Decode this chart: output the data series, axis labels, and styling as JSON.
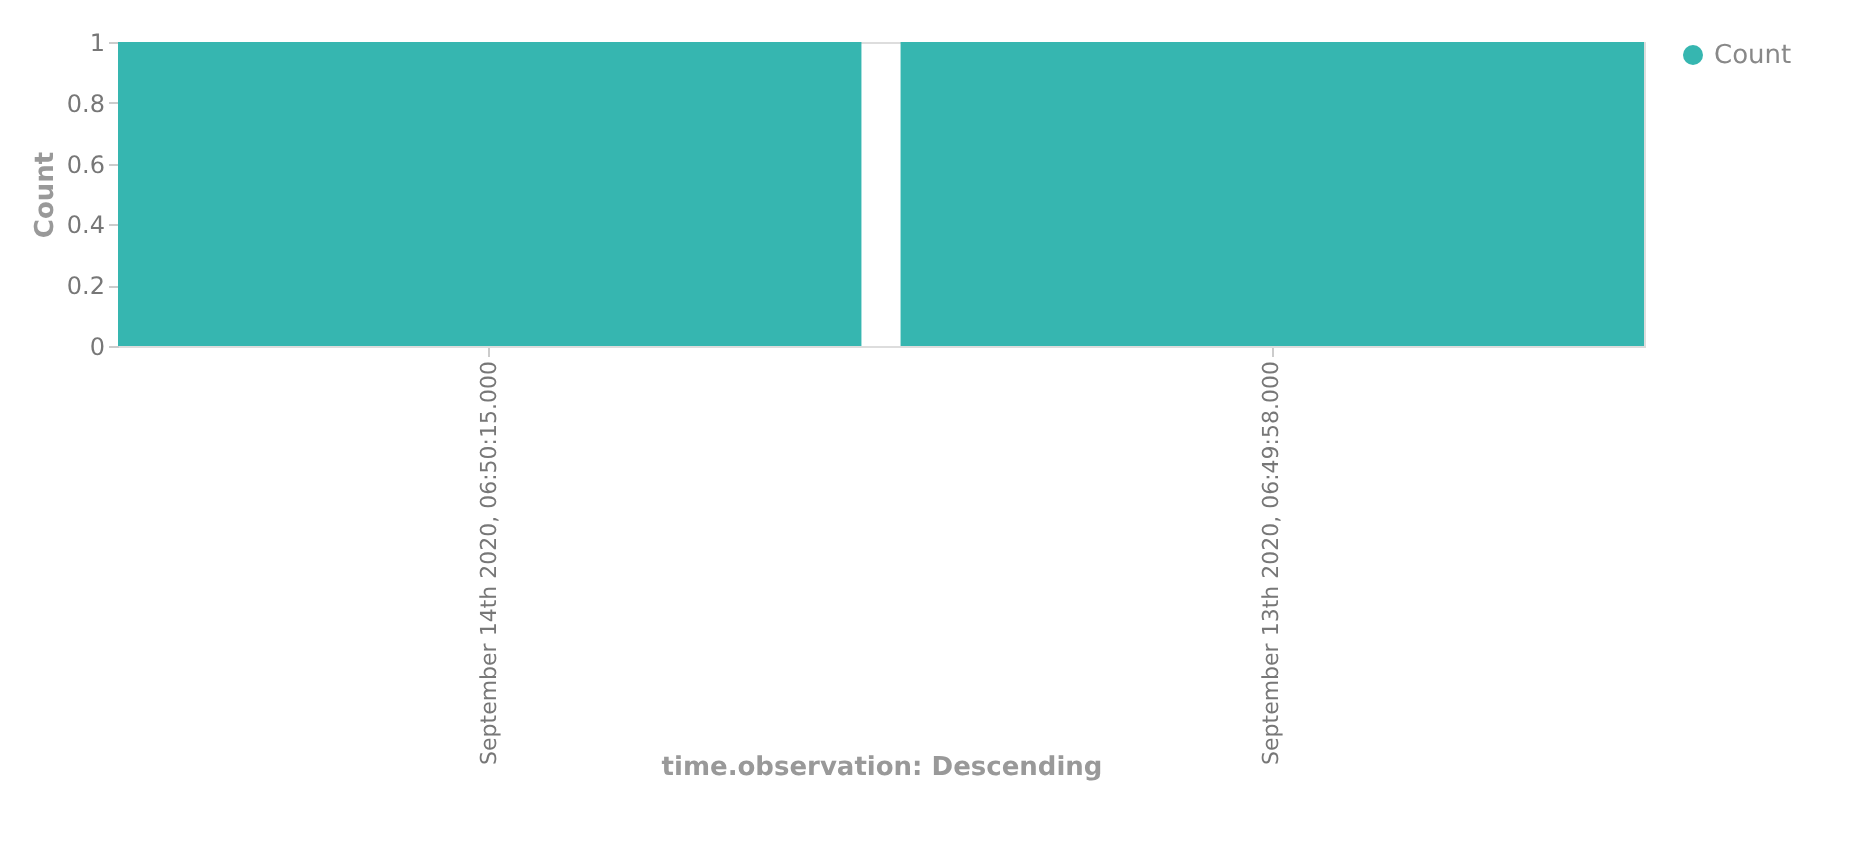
{
  "chart_data": {
    "type": "bar",
    "xlabel": "time.observation: Descending",
    "ylabel": "Count",
    "categories": [
      "September 14th 2020, 06:50:15.000",
      "September 13th 2020, 06:49:58.000"
    ],
    "series": [
      {
        "name": "Count",
        "color": "#36b6b0",
        "values": [
          1,
          1
        ]
      }
    ],
    "ylim": [
      0,
      1
    ],
    "yticks": [
      0,
      0.2,
      0.4,
      0.6,
      0.8,
      1
    ],
    "grid": false,
    "legend": "top right"
  }
}
